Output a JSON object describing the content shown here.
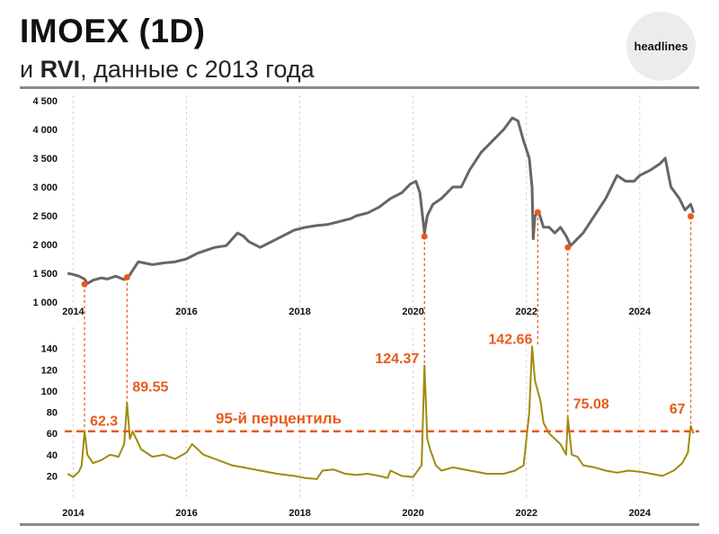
{
  "header": {
    "title": "IMOEX (1D)",
    "subtitle_prefix": "и ",
    "subtitle_accent": "RVI",
    "subtitle_suffix": ", данные с 2013 года",
    "badge": "headlines"
  },
  "colors": {
    "imoex": "#666666",
    "rvi": "#a08a0c",
    "accent": "#e85a1c",
    "grid": "#d4d4d4",
    "text": "#111111"
  },
  "chart_data": [
    {
      "type": "line",
      "ylim": [
        1000,
        4500
      ],
      "xlim": [
        2013.85,
        2025.05
      ],
      "yticks": [
        1000,
        1500,
        2000,
        2500,
        3000,
        3500,
        4000,
        4500
      ],
      "ytick_labels": [
        "1 000",
        "1 500",
        "2 000",
        "2 500",
        "3 000",
        "3 500",
        "4 000",
        "4 500"
      ],
      "xticks": [
        2014,
        2016,
        2018,
        2020,
        2022,
        2024
      ],
      "xtick_labels": [
        "2014",
        "2016",
        "2018",
        "2020",
        "2022",
        "2024"
      ],
      "grid": "vertical",
      "series": [
        {
          "x": [
            2013.9,
            2014.0,
            2014.1,
            2014.2,
            2014.25,
            2014.35,
            2014.5,
            2014.6,
            2014.75,
            2014.9,
            2014.97,
            2015.05,
            2015.15,
            2015.25,
            2015.4,
            2015.6,
            2015.8,
            2016.0,
            2016.2,
            2016.5,
            2016.7,
            2016.9,
            2017.0,
            2017.1,
            2017.3,
            2017.5,
            2017.7,
            2017.9,
            2018.1,
            2018.3,
            2018.5,
            2018.7,
            2018.9,
            2019.0,
            2019.2,
            2019.4,
            2019.6,
            2019.8,
            2019.95,
            2020.05,
            2020.12,
            2020.2,
            2020.25,
            2020.35,
            2020.5,
            2020.7,
            2020.85,
            2021.0,
            2021.2,
            2021.4,
            2021.6,
            2021.75,
            2021.85,
            2021.95,
            2022.05,
            2022.1,
            2022.12,
            2022.15,
            2022.22,
            2022.3,
            2022.4,
            2022.5,
            2022.6,
            2022.7,
            2022.78,
            2022.9,
            2023.0,
            2023.2,
            2023.4,
            2023.6,
            2023.75,
            2023.9,
            2024.0,
            2024.2,
            2024.35,
            2024.45,
            2024.55,
            2024.7,
            2024.8,
            2024.9,
            2024.95
          ],
          "y": [
            1500,
            1480,
            1450,
            1400,
            1320,
            1380,
            1420,
            1400,
            1450,
            1390,
            1430,
            1550,
            1700,
            1680,
            1650,
            1680,
            1700,
            1750,
            1850,
            1950,
            1980,
            2200,
            2150,
            2050,
            1950,
            2050,
            2150,
            2250,
            2300,
            2330,
            2350,
            2400,
            2450,
            2500,
            2550,
            2650,
            2800,
            2900,
            3050,
            3100,
            2900,
            2200,
            2500,
            2700,
            2800,
            3000,
            3000,
            3300,
            3600,
            3800,
            4000,
            4200,
            4150,
            3800,
            3500,
            3000,
            2100,
            2500,
            2560,
            2300,
            2300,
            2200,
            2300,
            2150,
            1980,
            2100,
            2200,
            2500,
            2800,
            3200,
            3100,
            3100,
            3200,
            3300,
            3400,
            3500,
            3000,
            2800,
            2600,
            2700,
            2550
          ]
        }
      ],
      "markers": [
        {
          "x": 2014.2,
          "y": 1310
        },
        {
          "x": 2014.95,
          "y": 1430
        },
        {
          "x": 2020.2,
          "y": 2140
        },
        {
          "x": 2022.2,
          "y": 2560
        },
        {
          "x": 2022.73,
          "y": 1950
        },
        {
          "x": 2024.9,
          "y": 2490
        }
      ]
    },
    {
      "type": "line",
      "ylim": [
        11,
        155
      ],
      "xlim": [
        2013.85,
        2025.05
      ],
      "yticks": [
        20,
        40,
        60,
        80,
        100,
        120,
        140
      ],
      "ytick_labels": [
        "20",
        "40",
        "60",
        "80",
        "100",
        "120",
        "140"
      ],
      "xticks": [
        2014,
        2016,
        2018,
        2020,
        2022,
        2024
      ],
      "xtick_labels": [
        "2014",
        "2016",
        "2018",
        "2020",
        "2022",
        "2024"
      ],
      "grid": "vertical",
      "series": [
        {
          "x": [
            2013.9,
            2014.0,
            2014.1,
            2014.15,
            2014.2,
            2014.25,
            2014.35,
            2014.5,
            2014.65,
            2014.8,
            2014.9,
            2014.95,
            2015.0,
            2015.05,
            2015.2,
            2015.4,
            2015.6,
            2015.8,
            2016.0,
            2016.1,
            2016.3,
            2016.5,
            2016.8,
            2017.0,
            2017.3,
            2017.6,
            2017.9,
            2018.1,
            2018.3,
            2018.4,
            2018.6,
            2018.8,
            2019.0,
            2019.2,
            2019.4,
            2019.55,
            2019.6,
            2019.8,
            2020.0,
            2020.15,
            2020.2,
            2020.25,
            2020.3,
            2020.4,
            2020.5,
            2020.7,
            2021.0,
            2021.3,
            2021.6,
            2021.8,
            2021.95,
            2022.05,
            2022.1,
            2022.15,
            2022.2,
            2022.25,
            2022.3,
            2022.4,
            2022.5,
            2022.6,
            2022.7,
            2022.73,
            2022.8,
            2022.9,
            2023.0,
            2023.2,
            2023.4,
            2023.6,
            2023.8,
            2024.0,
            2024.2,
            2024.4,
            2024.6,
            2024.75,
            2024.85,
            2024.9,
            2024.95
          ],
          "y": [
            22,
            19,
            24,
            30,
            62,
            40,
            32,
            35,
            40,
            38,
            50,
            89,
            55,
            62,
            45,
            38,
            40,
            36,
            42,
            50,
            40,
            36,
            30,
            28,
            25,
            22,
            20,
            18,
            17,
            25,
            26,
            22,
            21,
            22,
            20,
            18,
            25,
            20,
            19,
            30,
            124,
            55,
            45,
            30,
            25,
            28,
            25,
            22,
            22,
            25,
            30,
            80,
            142,
            110,
            100,
            90,
            70,
            60,
            55,
            50,
            40,
            75,
            40,
            38,
            30,
            28,
            25,
            23,
            25,
            24,
            22,
            20,
            25,
            32,
            42,
            67,
            60
          ]
        }
      ],
      "markers": [
        {
          "x": 2014.2,
          "y": 62.3
        },
        {
          "x": 2014.95,
          "y": 89.55
        },
        {
          "x": 2020.2,
          "y": 124.37
        },
        {
          "x": 2022.2,
          "y": 142.66
        },
        {
          "x": 2022.73,
          "y": 75.08
        },
        {
          "x": 2024.9,
          "y": 67
        }
      ],
      "annotations": [
        "62.3",
        "89.55",
        "124.37",
        "142.66",
        "75.08",
        "67"
      ],
      "threshold": {
        "y": 62,
        "label": "95-й перцентиль"
      }
    }
  ]
}
